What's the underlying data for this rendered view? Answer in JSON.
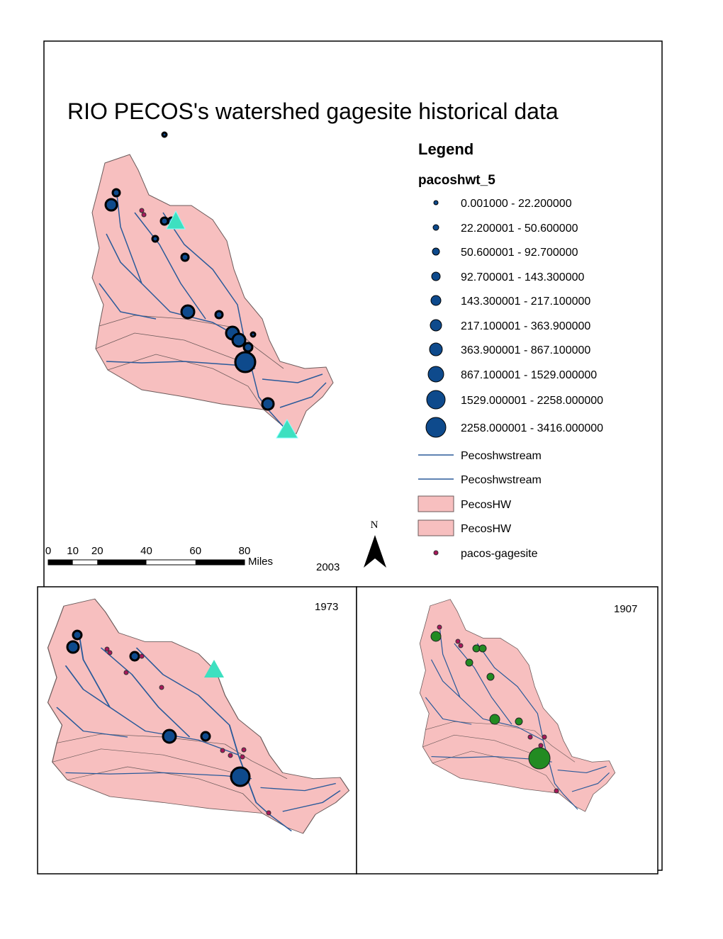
{
  "title": "RIO PECOS's watershed gagesite historical data",
  "legend": {
    "title": "Legend",
    "layer": "pacoshwt_5",
    "classes": [
      "0.001000 - 22.200000",
      "22.200001 - 50.600000",
      "50.600001 - 92.700000",
      "92.700001 - 143.300000",
      "143.300001 - 217.100000",
      "217.100001 - 363.900000",
      "363.900001 - 867.100000",
      "867.100001 - 1529.000000",
      "1529.000001 - 2258.000000",
      "2258.000001 - 3416.000000"
    ],
    "streams": [
      "Pecoshwstream",
      "Pecoshwstream"
    ],
    "polygons": [
      "PecosHW",
      "PecosHW"
    ],
    "points": "pacos-gagesite"
  },
  "scale_bar": {
    "ticks": [
      0,
      10,
      20,
      40,
      60,
      80
    ],
    "unit": "Miles"
  },
  "north_arrow": "N",
  "panels": [
    "2003",
    "1973",
    "1907"
  ]
}
